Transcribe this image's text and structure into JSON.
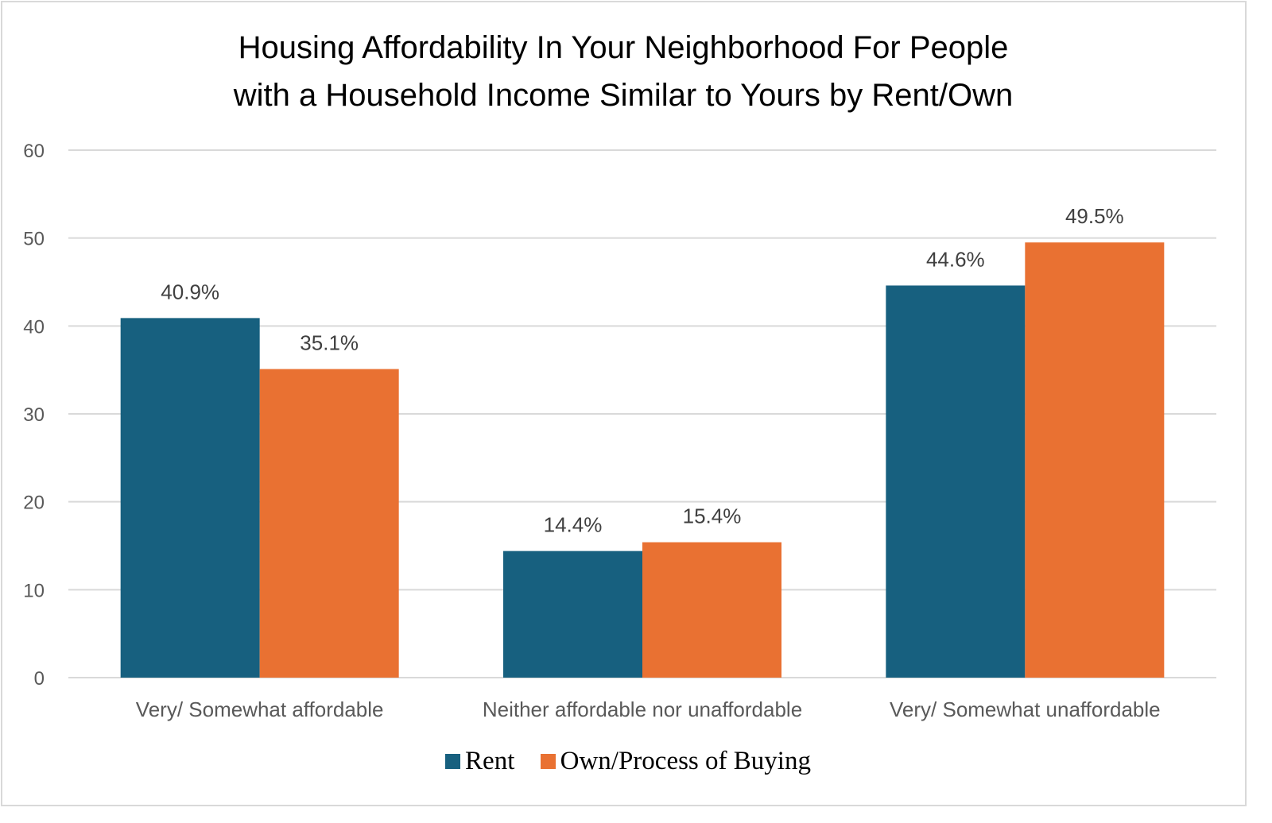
{
  "chart_data": {
    "type": "bar",
    "title": "Housing Affordability In Your Neighborhood For People with a Household Income Similar to Yours by Rent/Own",
    "title_lines": [
      "Housing Affordability In Your Neighborhood For People",
      "with a Household Income Similar to Yours by Rent/Own"
    ],
    "xlabel": "",
    "ylabel": "",
    "ylim": [
      0,
      60
    ],
    "yticks": [
      0,
      10,
      20,
      30,
      40,
      50,
      60
    ],
    "grid": true,
    "legend_position": "bottom",
    "categories": [
      "Very/ Somewhat affordable",
      "Neither affordable nor unaffordable",
      "Very/ Somewhat unaffordable"
    ],
    "series": [
      {
        "name": "Rent",
        "color": "#17607f",
        "values": [
          40.9,
          14.4,
          44.6
        ],
        "labels": [
          "40.9%",
          "14.4%",
          "44.6%"
        ]
      },
      {
        "name": "Own/Process of Buying",
        "color": "#e97132",
        "values": [
          35.1,
          15.4,
          49.5
        ],
        "labels": [
          "35.1%",
          "15.4%",
          "49.5%"
        ]
      }
    ]
  }
}
